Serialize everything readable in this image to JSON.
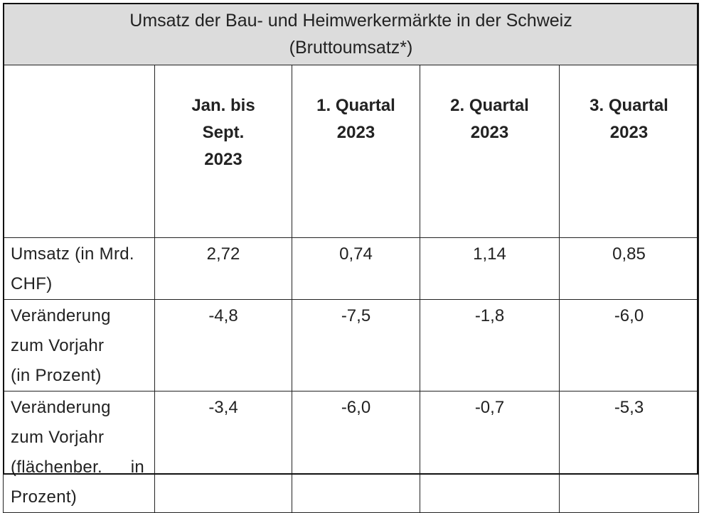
{
  "table": {
    "title_line1": "Umsatz der Bau- und Heimwerkermärkte in der Schweiz",
    "title_line2": "(Bruttoumsatz*)",
    "columns": [
      {
        "line1": "Jan. bis",
        "line2": "Sept.",
        "line3": "2023"
      },
      {
        "line1": "1. Quartal",
        "line2": "2023",
        "line3": ""
      },
      {
        "line1": "2. Quartal",
        "line2": "2023",
        "line3": ""
      },
      {
        "line1": "3. Quartal",
        "line2": "2023",
        "line3": ""
      }
    ],
    "rows": [
      {
        "label_lines": [
          "Umsatz (in Mrd.",
          "CHF)"
        ],
        "values": [
          "2,72",
          "0,74",
          "1,14",
          "0,85"
        ]
      },
      {
        "label_lines": [
          "Veränderung",
          "zum Vorjahr",
          "(in Prozent)"
        ],
        "values": [
          "-4,8",
          "-7,5",
          "-1,8",
          "-6,0"
        ]
      },
      {
        "label_lines": [
          "Veränderung",
          "zum Vorjahr",
          "(flächenber.",
          "in",
          "Prozent)"
        ],
        "values": [
          "-3,4",
          "-6,0",
          "-0,7",
          "-5,3"
        ]
      }
    ]
  }
}
